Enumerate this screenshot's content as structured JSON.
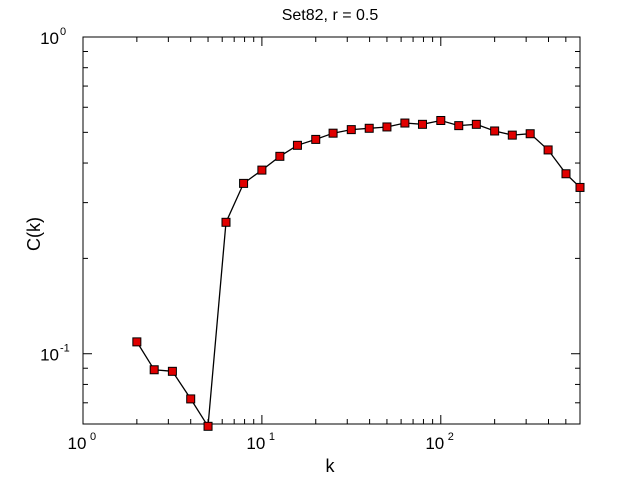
{
  "chart_data": {
    "type": "line",
    "title": "Set82, r = 0.5",
    "xlabel": "k",
    "ylabel": "C(k)",
    "xscale": "log",
    "yscale": "log",
    "xlim": [
      1,
      600
    ],
    "ylim": [
      0.06,
      1
    ],
    "grid": false,
    "x_ticks": [
      {
        "value": 1,
        "base": "10",
        "exp": "0"
      },
      {
        "value": 10,
        "base": "10",
        "exp": "1"
      },
      {
        "value": 100,
        "base": "10",
        "exp": "2"
      }
    ],
    "y_ticks": [
      {
        "value": 0.1,
        "base": "10",
        "exp": "-1"
      },
      {
        "value": 1,
        "base": "10",
        "exp": "0"
      }
    ],
    "marker_color": "#e00000",
    "line_color": "#000000",
    "series": [
      {
        "x": [
          2,
          2.5,
          3.16,
          4,
          5,
          6.3,
          7.9,
          10,
          12.6,
          15.8,
          20,
          25,
          31.6,
          39.8,
          50,
          63,
          79,
          100,
          126,
          158,
          200,
          251,
          316,
          398,
          501,
          600
        ],
        "y": [
          0.109,
          0.089,
          0.088,
          0.072,
          0.059,
          0.26,
          0.345,
          0.38,
          0.42,
          0.455,
          0.475,
          0.497,
          0.51,
          0.515,
          0.52,
          0.535,
          0.53,
          0.545,
          0.525,
          0.53,
          0.505,
          0.49,
          0.495,
          0.44,
          0.37,
          0.335
        ]
      }
    ]
  }
}
